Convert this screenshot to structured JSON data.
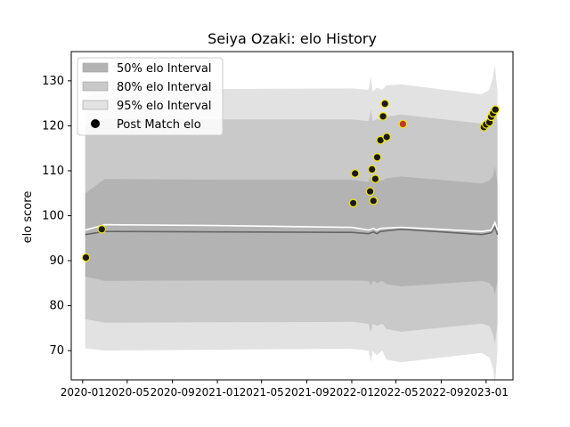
{
  "chart_data": {
    "type": "line",
    "title": "Seiya Ozaki: elo History",
    "xlabel": "",
    "ylabel": "elo score",
    "xlim": [
      "2019-12-01",
      "2023-03-15"
    ],
    "ylim": [
      63.5,
      136.5
    ],
    "x_ticks": [
      "2020-01",
      "2020-05",
      "2020-09",
      "2021-01",
      "2021-05",
      "2021-09",
      "2022-01",
      "2022-05",
      "2022-09",
      "2023-01"
    ],
    "y_ticks": [
      70,
      80,
      90,
      100,
      110,
      120,
      130
    ],
    "grid": false,
    "legend_position": "top-left",
    "legend": [
      {
        "label": "50% elo Interval",
        "kind": "band",
        "color": "#b3b3b3"
      },
      {
        "label": "80% elo Interval",
        "kind": "band",
        "color": "#c9c9c9"
      },
      {
        "label": "95% elo Interval",
        "kind": "band",
        "color": "#e2e2e2"
      },
      {
        "label": "Post Match elo",
        "kind": "marker",
        "color": "#000000"
      }
    ],
    "bands": [
      {
        "name": "95% elo Interval",
        "color": "#e2e2e2",
        "points": [
          {
            "x": "2020-01-08",
            "lower": 70.5,
            "upper": 126.5
          },
          {
            "x": "2020-03-01",
            "lower": 70.0,
            "upper": 128.2
          },
          {
            "x": "2021-01-01",
            "lower": 70.2,
            "upper": 128.2
          },
          {
            "x": "2022-01-01",
            "lower": 70.4,
            "upper": 128.3
          },
          {
            "x": "2022-02-15",
            "lower": 70.0,
            "upper": 128.0
          },
          {
            "x": "2022-02-22",
            "lower": 67.5,
            "upper": 131.0
          },
          {
            "x": "2022-02-27",
            "lower": 70.0,
            "upper": 127.5
          },
          {
            "x": "2022-03-10",
            "lower": 69.0,
            "upper": 128.5
          },
          {
            "x": "2022-03-25",
            "lower": 70.0,
            "upper": 128.0
          },
          {
            "x": "2022-04-05",
            "lower": 68.0,
            "upper": 129.0
          },
          {
            "x": "2022-05-15",
            "lower": 67.4,
            "upper": 129.2
          },
          {
            "x": "2022-12-20",
            "lower": 69.5,
            "upper": 127.0
          },
          {
            "x": "2023-01-10",
            "lower": 68.5,
            "upper": 128.0
          },
          {
            "x": "2023-01-20",
            "lower": 66.0,
            "upper": 131.0
          },
          {
            "x": "2023-01-25",
            "lower": 62.0,
            "upper": 133.5
          },
          {
            "x": "2023-02-01",
            "lower": 70.0,
            "upper": 127.5
          }
        ]
      },
      {
        "name": "80% elo Interval",
        "color": "#c9c9c9",
        "points": [
          {
            "x": "2020-01-08",
            "lower": 77.0,
            "upper": 120.0
          },
          {
            "x": "2020-03-01",
            "lower": 76.2,
            "upper": 121.5
          },
          {
            "x": "2021-01-01",
            "lower": 76.3,
            "upper": 121.4
          },
          {
            "x": "2022-01-01",
            "lower": 76.4,
            "upper": 121.4
          },
          {
            "x": "2022-02-15",
            "lower": 76.0,
            "upper": 121.0
          },
          {
            "x": "2022-02-22",
            "lower": 74.0,
            "upper": 123.5
          },
          {
            "x": "2022-02-27",
            "lower": 76.0,
            "upper": 121.0
          },
          {
            "x": "2022-03-10",
            "lower": 75.5,
            "upper": 121.5
          },
          {
            "x": "2022-03-25",
            "lower": 76.0,
            "upper": 121.2
          },
          {
            "x": "2022-04-05",
            "lower": 74.8,
            "upper": 122.0
          },
          {
            "x": "2022-05-15",
            "lower": 74.2,
            "upper": 122.5
          },
          {
            "x": "2022-12-20",
            "lower": 76.0,
            "upper": 120.5
          },
          {
            "x": "2023-01-10",
            "lower": 75.5,
            "upper": 121.0
          },
          {
            "x": "2023-01-20",
            "lower": 73.5,
            "upper": 123.5
          },
          {
            "x": "2023-01-25",
            "lower": 71.5,
            "upper": 125.0
          },
          {
            "x": "2023-02-01",
            "lower": 76.0,
            "upper": 120.5
          }
        ]
      },
      {
        "name": "50% elo Interval",
        "color": "#b3b3b3",
        "points": [
          {
            "x": "2020-01-08",
            "lower": 86.5,
            "upper": 105.0
          },
          {
            "x": "2020-03-01",
            "lower": 85.5,
            "upper": 108.2
          },
          {
            "x": "2021-01-01",
            "lower": 85.6,
            "upper": 108.0
          },
          {
            "x": "2022-01-01",
            "lower": 85.6,
            "upper": 108.0
          },
          {
            "x": "2022-02-15",
            "lower": 85.5,
            "upper": 107.5
          },
          {
            "x": "2022-02-22",
            "lower": 84.5,
            "upper": 108.5
          },
          {
            "x": "2022-02-27",
            "lower": 85.5,
            "upper": 107.5
          },
          {
            "x": "2022-03-10",
            "lower": 85.0,
            "upper": 108.0
          },
          {
            "x": "2022-03-25",
            "lower": 85.5,
            "upper": 107.8
          },
          {
            "x": "2022-04-05",
            "lower": 84.8,
            "upper": 108.3
          },
          {
            "x": "2022-05-15",
            "lower": 84.3,
            "upper": 108.7
          },
          {
            "x": "2022-12-20",
            "lower": 85.5,
            "upper": 107.2
          },
          {
            "x": "2023-01-10",
            "lower": 85.0,
            "upper": 107.8
          },
          {
            "x": "2023-01-20",
            "lower": 84.0,
            "upper": 109.0
          },
          {
            "x": "2023-01-25",
            "lower": 82.5,
            "upper": 111.0
          },
          {
            "x": "2023-02-01",
            "lower": 85.5,
            "upper": 107.2
          }
        ]
      }
    ],
    "lines": [
      {
        "color": "#666666",
        "points": [
          {
            "x": "2020-01-08",
            "y": 95.8
          },
          {
            "x": "2020-03-01",
            "y": 96.5
          },
          {
            "x": "2021-01-01",
            "y": 96.4
          },
          {
            "x": "2022-01-01",
            "y": 96.3
          },
          {
            "x": "2022-02-15",
            "y": 96.0
          },
          {
            "x": "2022-03-01",
            "y": 96.4
          },
          {
            "x": "2022-03-10",
            "y": 96.0
          },
          {
            "x": "2022-03-20",
            "y": 96.5
          },
          {
            "x": "2022-05-15",
            "y": 97.0
          },
          {
            "x": "2022-12-20",
            "y": 95.8
          },
          {
            "x": "2023-01-15",
            "y": 96.2
          },
          {
            "x": "2023-01-25",
            "y": 97.5
          },
          {
            "x": "2023-02-01",
            "y": 95.8
          }
        ]
      },
      {
        "color": "#ffffff",
        "points": [
          {
            "x": "2020-01-08",
            "y": 96.8
          },
          {
            "x": "2020-03-01",
            "y": 98.0
          },
          {
            "x": "2021-01-01",
            "y": 97.8
          },
          {
            "x": "2022-01-01",
            "y": 97.4
          },
          {
            "x": "2022-02-15",
            "y": 96.8
          },
          {
            "x": "2022-03-01",
            "y": 97.2
          },
          {
            "x": "2022-03-10",
            "y": 96.8
          },
          {
            "x": "2022-03-20",
            "y": 97.2
          },
          {
            "x": "2022-05-15",
            "y": 97.4
          },
          {
            "x": "2022-12-20",
            "y": 96.5
          },
          {
            "x": "2023-01-15",
            "y": 96.8
          },
          {
            "x": "2023-01-25",
            "y": 98.5
          },
          {
            "x": "2023-02-01",
            "y": 96.8
          }
        ]
      }
    ],
    "series": [
      {
        "name": "Post Match elo",
        "points": [
          {
            "x": "2020-01-10",
            "y": 90.7,
            "color": "#1a1a1a"
          },
          {
            "x": "2020-02-22",
            "y": 97.0,
            "color": "#1a1a1a"
          },
          {
            "x": "2022-01-05",
            "y": 102.8,
            "color": "#1a1a1a"
          },
          {
            "x": "2022-01-10",
            "y": 109.4,
            "color": "#1a1a1a"
          },
          {
            "x": "2022-02-20",
            "y": 105.4,
            "color": "#1a1a1a"
          },
          {
            "x": "2022-02-25",
            "y": 110.3,
            "color": "#1a1a1a"
          },
          {
            "x": "2022-03-01",
            "y": 103.3,
            "color": "#1a1a1a"
          },
          {
            "x": "2022-03-06",
            "y": 108.2,
            "color": "#1a1a1a"
          },
          {
            "x": "2022-03-11",
            "y": 113.0,
            "color": "#1a1a1a"
          },
          {
            "x": "2022-03-20",
            "y": 116.8,
            "color": "#1a1a1a"
          },
          {
            "x": "2022-03-27",
            "y": 122.1,
            "color": "#1a1a1a"
          },
          {
            "x": "2022-04-01",
            "y": 124.9,
            "color": "#1a1a1a"
          },
          {
            "x": "2022-04-06",
            "y": 117.5,
            "color": "#1a1a1a"
          },
          {
            "x": "2022-05-20",
            "y": 120.4,
            "color": "#c0392b"
          },
          {
            "x": "2022-12-26",
            "y": 119.7,
            "color": "#1a1a1a"
          },
          {
            "x": "2023-01-01",
            "y": 120.3,
            "color": "#1a1a1a"
          },
          {
            "x": "2023-01-10",
            "y": 120.8,
            "color": "#1a1a1a"
          },
          {
            "x": "2023-01-15",
            "y": 122.0,
            "color": "#1a1a1a"
          },
          {
            "x": "2023-01-20",
            "y": 122.8,
            "color": "#1a1a1a"
          },
          {
            "x": "2023-01-26",
            "y": 123.6,
            "color": "#1a1a1a"
          }
        ]
      }
    ]
  }
}
